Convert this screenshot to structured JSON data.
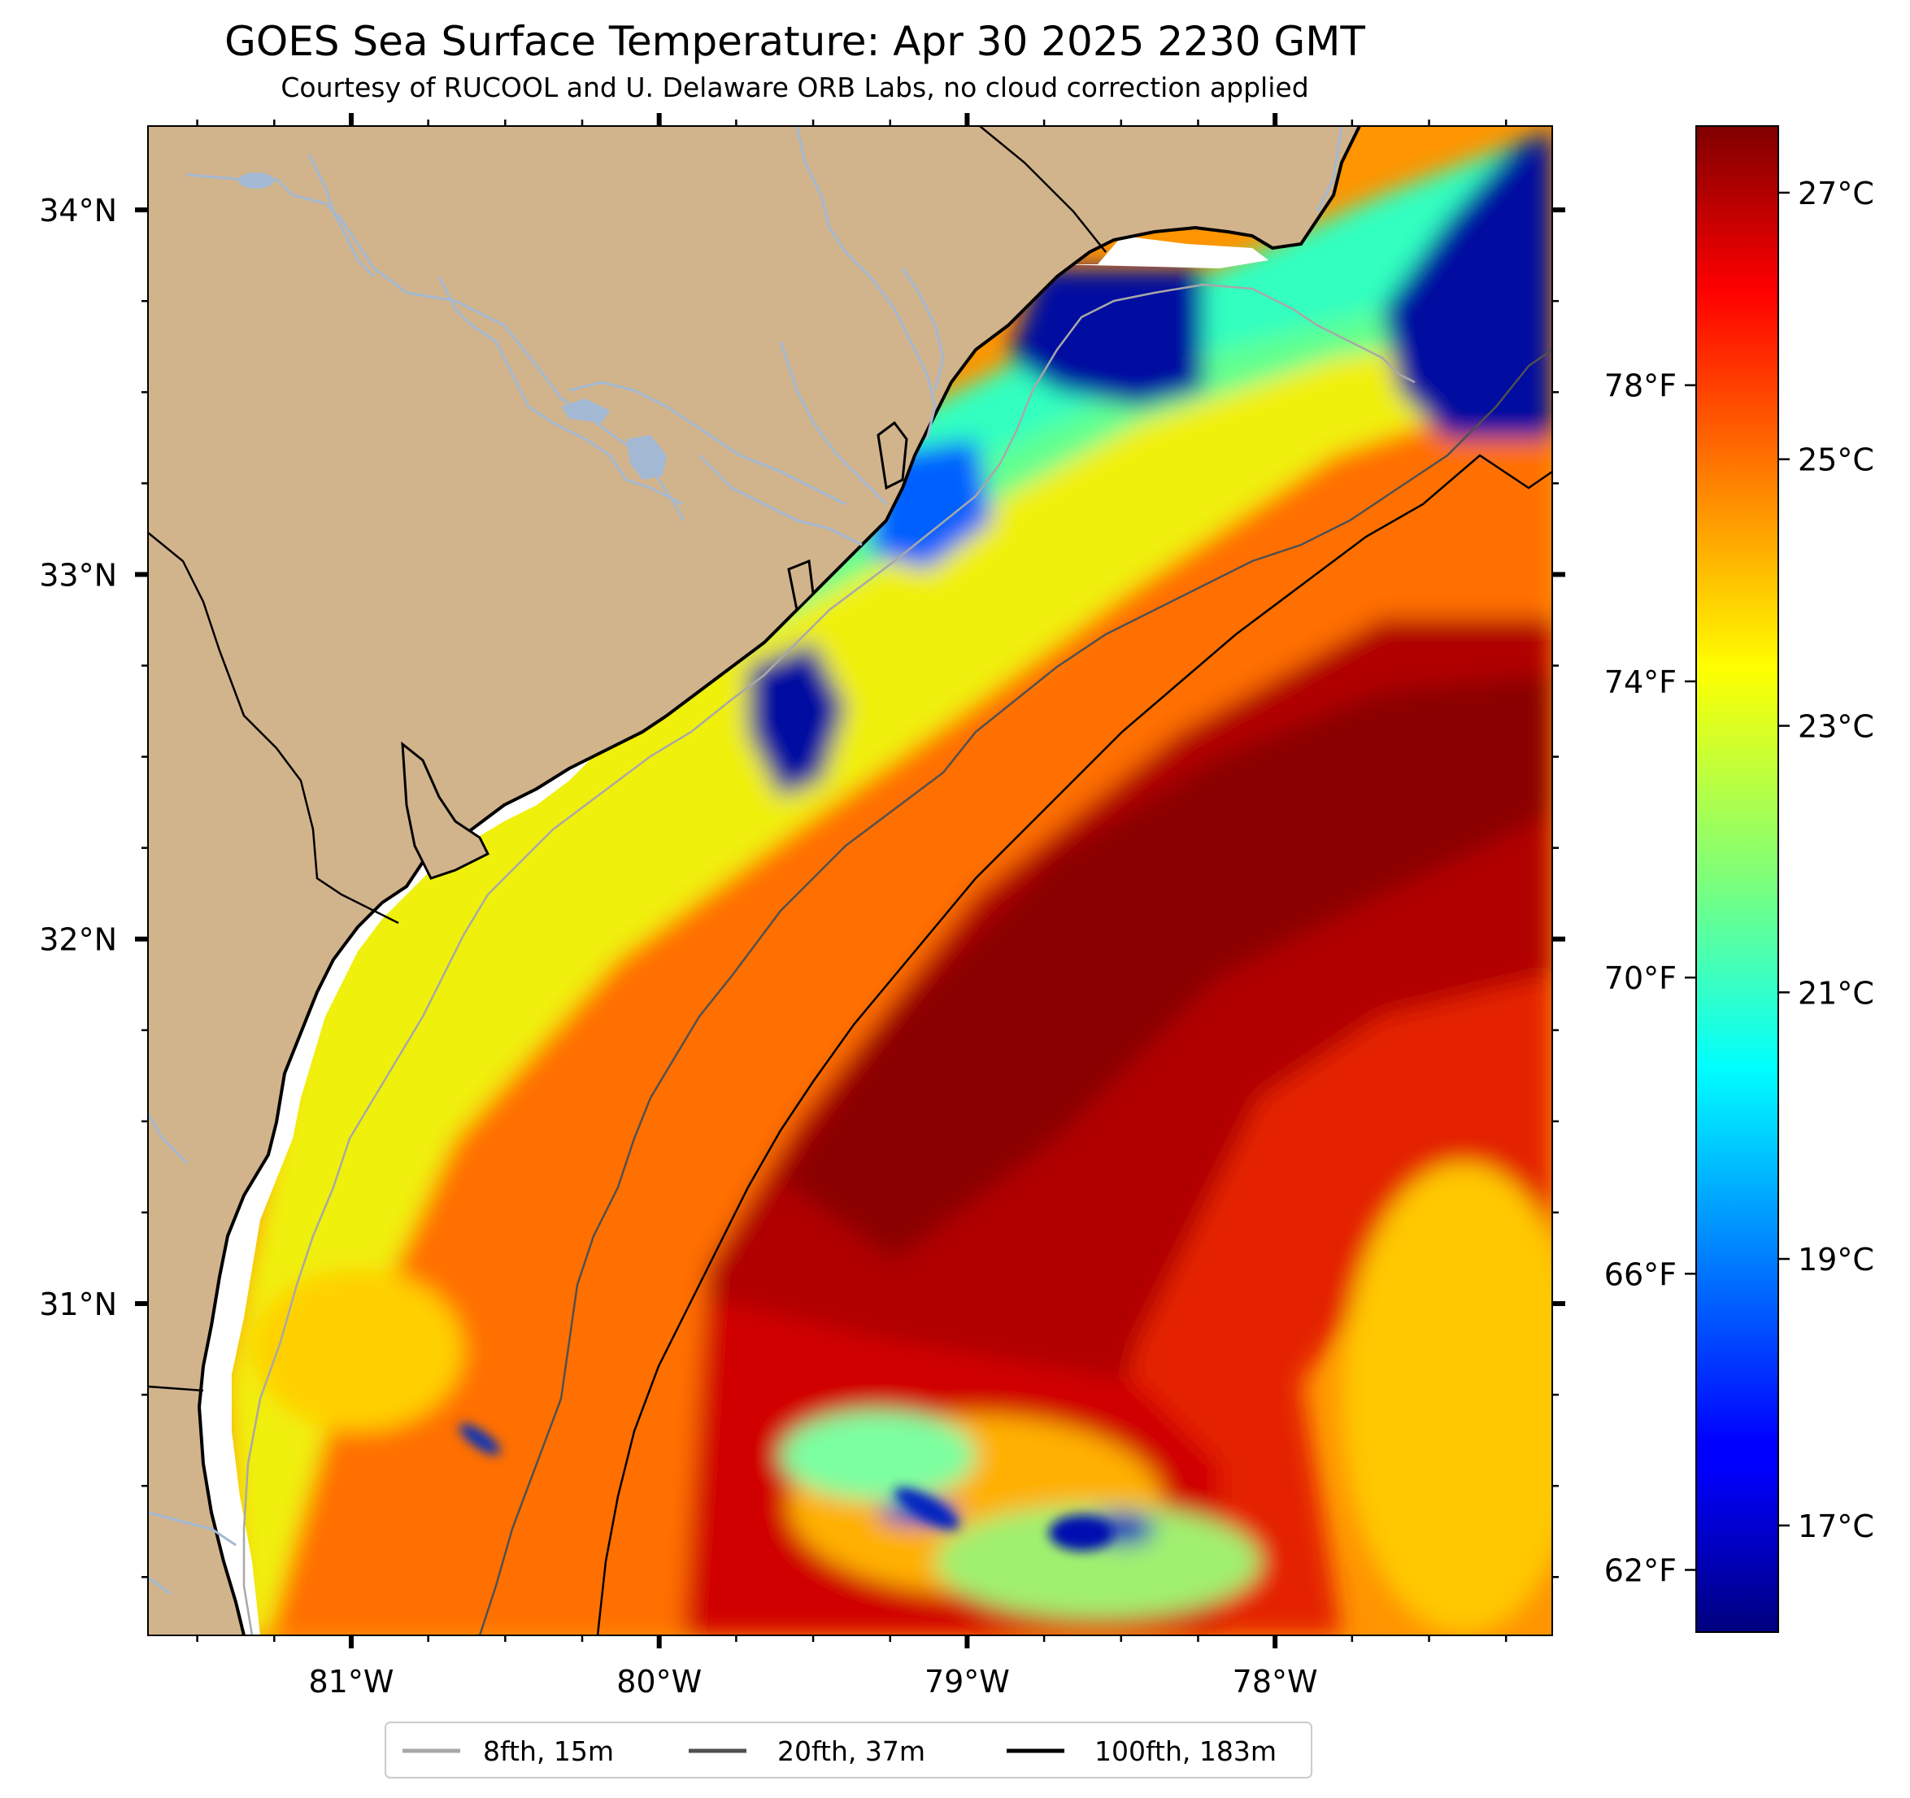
{
  "header": {
    "title": "GOES Sea Surface Temperature: Apr 30 2025 2230 GMT",
    "subtitle": "Courtesy of RUCOOL and U. Delaware ORB Labs, no cloud correction applied"
  },
  "map": {
    "lat_labels": [
      "34°N",
      "33°N",
      "32°N",
      "31°N"
    ],
    "lon_labels": [
      "81°W",
      "80°W",
      "79°W",
      "78°W"
    ],
    "lat_values": [
      34,
      33,
      32,
      31
    ],
    "lon_values": [
      -81,
      -80,
      -79,
      -78
    ],
    "extent": {
      "lon_min": -81.66,
      "lon_max": -77.1,
      "lat_min": 30.09,
      "lat_max": 34.23
    },
    "colors": {
      "land": "#d2b48c",
      "river": "#a3b9d3",
      "coastline": "#000000",
      "no_data": "#ffffff"
    }
  },
  "colorbar": {
    "celsius_labels": [
      "27°C",
      "25°C",
      "23°C",
      "21°C",
      "19°C",
      "17°C"
    ],
    "celsius_values": [
      27,
      25,
      23,
      21,
      19,
      17
    ],
    "fahrenheit_labels": [
      "78°F",
      "74°F",
      "70°F",
      "66°F",
      "62°F"
    ],
    "fahrenheit_values": [
      78,
      74,
      70,
      66,
      62
    ],
    "range_c": [
      16.2,
      27.5
    ],
    "colormap": "jet"
  },
  "legend": {
    "items": [
      {
        "label": "8fth, 15m",
        "color": "#a8a8a8"
      },
      {
        "label": "20fth, 37m",
        "color": "#505050"
      },
      {
        "label": "100fth, 183m",
        "color": "#000000"
      }
    ]
  }
}
